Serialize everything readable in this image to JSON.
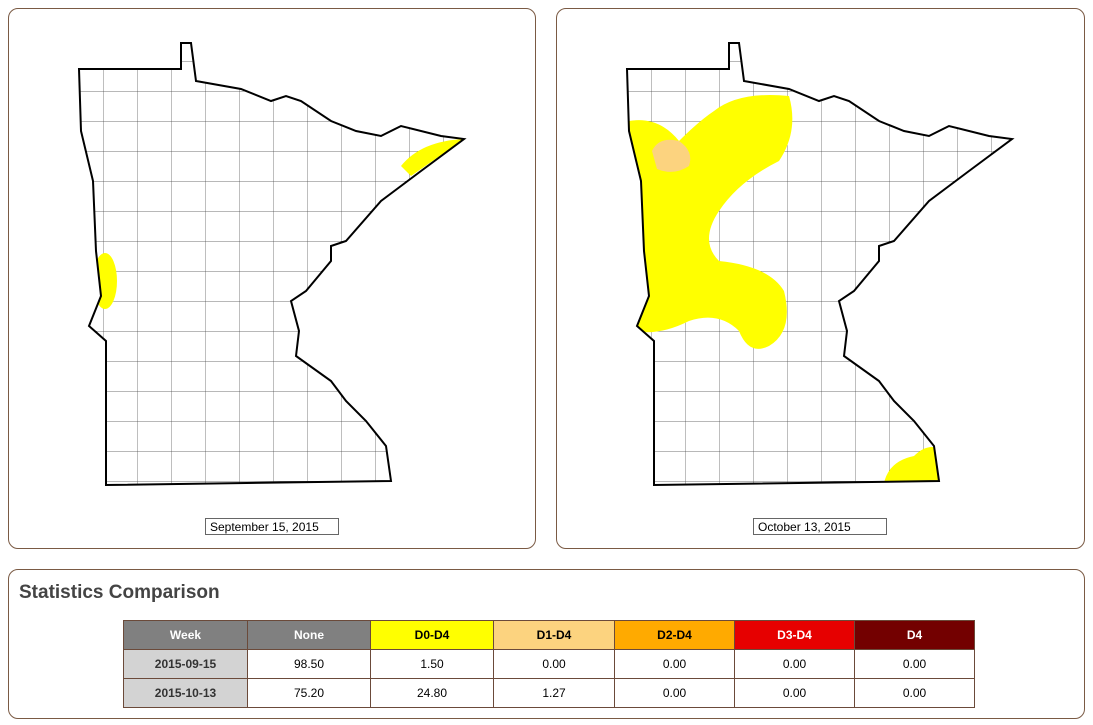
{
  "maps": [
    {
      "date": "September 15, 2015"
    },
    {
      "date": "October 13, 2015"
    }
  ],
  "statistics": {
    "title": "Statistics Comparison",
    "columns": [
      "Week",
      "None",
      "D0-D4",
      "D1-D4",
      "D2-D4",
      "D3-D4",
      "D4"
    ],
    "rows": [
      [
        "2015-09-15",
        "98.50",
        "1.50",
        "0.00",
        "0.00",
        "0.00",
        "0.00"
      ],
      [
        "2015-10-13",
        "75.20",
        "24.80",
        "1.27",
        "0.00",
        "0.00",
        "0.00"
      ]
    ]
  }
}
